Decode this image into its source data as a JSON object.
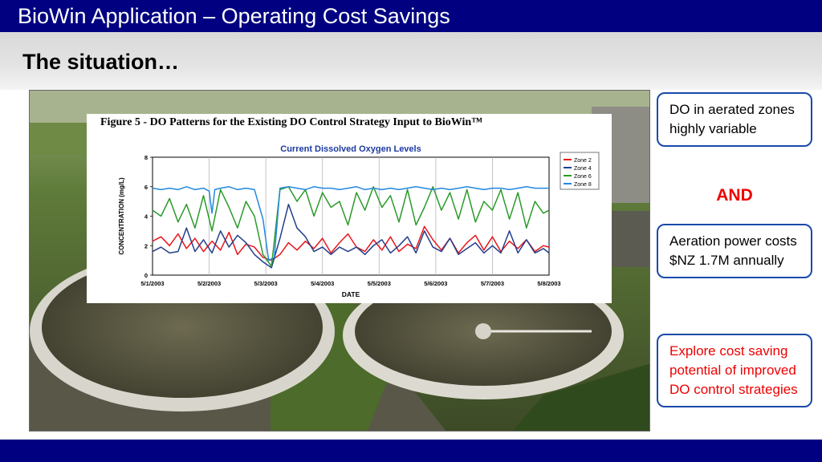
{
  "slide": {
    "title": "BioWin Application – Operating Cost Savings",
    "subtitle": "The situation…"
  },
  "figure": {
    "caption": "Figure 5 - DO Patterns for the Existing DO Control Strategy Input to BioWin™"
  },
  "callouts": [
    {
      "text": "DO in aerated zones highly variable"
    },
    {
      "text": "Aeration power costs $NZ 1.7M annually"
    },
    {
      "text": "Explore cost saving potential of improved DO control strategies"
    }
  ],
  "connector": "AND",
  "colors": {
    "title_bar": "#000080",
    "callout_border": "#1a4aa8",
    "emphasis_red": "#ee0000"
  },
  "chart_data": {
    "type": "line",
    "title": "Current Dissolved Oxygen Levels",
    "xlabel": "DATE",
    "ylabel": "CONCENTRATION (mg/L)",
    "xlim": [
      0,
      7
    ],
    "ylim": [
      0,
      8
    ],
    "x_ticks": [
      "5/1/2003",
      "5/2/2003",
      "5/3/2003",
      "5/4/2003",
      "5/5/2003",
      "5/6/2003",
      "5/7/2003",
      "5/8/2003"
    ],
    "y_ticks": [
      0,
      2,
      4,
      6,
      8
    ],
    "grid": "vertical",
    "legend_position": "top-right",
    "series": [
      {
        "name": "Zone 2",
        "color": "#e8161b",
        "x": [
          0,
          0.15,
          0.3,
          0.45,
          0.6,
          0.75,
          0.9,
          1.05,
          1.2,
          1.35,
          1.5,
          1.65,
          1.8,
          1.95,
          2.1,
          2.25,
          2.4,
          2.55,
          2.7,
          2.85,
          3,
          3.15,
          3.3,
          3.45,
          3.6,
          3.75,
          3.9,
          4.05,
          4.2,
          4.35,
          4.5,
          4.65,
          4.8,
          4.95,
          5.1,
          5.25,
          5.4,
          5.55,
          5.7,
          5.85,
          6,
          6.15,
          6.3,
          6.45,
          6.6,
          6.75,
          6.9,
          7
        ],
        "y": [
          2.3,
          2.6,
          2.0,
          2.8,
          1.8,
          2.5,
          1.6,
          2.3,
          1.7,
          2.9,
          1.4,
          2.1,
          1.9,
          1.2,
          1.0,
          1.4,
          2.2,
          1.7,
          2.3,
          1.8,
          2.5,
          1.5,
          2.2,
          2.8,
          1.9,
          1.6,
          2.4,
          1.7,
          2.6,
          1.6,
          2.1,
          1.8,
          3.3,
          2.4,
          1.7,
          2.5,
          1.5,
          2.2,
          2.7,
          1.7,
          2.6,
          1.6,
          2.3,
          1.8,
          2.4,
          1.6,
          2.0,
          1.9
        ]
      },
      {
        "name": "Zone 4",
        "color": "#233f8c",
        "x": [
          0,
          0.15,
          0.3,
          0.45,
          0.6,
          0.75,
          0.9,
          1.05,
          1.2,
          1.35,
          1.5,
          1.65,
          1.8,
          1.95,
          2.1,
          2.25,
          2.4,
          2.55,
          2.7,
          2.85,
          3,
          3.15,
          3.3,
          3.45,
          3.6,
          3.75,
          3.9,
          4.05,
          4.2,
          4.35,
          4.5,
          4.65,
          4.8,
          4.95,
          5.1,
          5.25,
          5.4,
          5.55,
          5.7,
          5.85,
          6,
          6.15,
          6.3,
          6.45,
          6.6,
          6.75,
          6.9,
          7
        ],
        "y": [
          1.6,
          1.9,
          1.5,
          1.6,
          3.2,
          1.6,
          2.4,
          1.5,
          3.0,
          1.9,
          2.7,
          2.2,
          1.4,
          0.9,
          0.5,
          2.5,
          4.8,
          3.2,
          2.6,
          1.6,
          1.9,
          1.4,
          1.9,
          1.6,
          1.9,
          1.4,
          2.0,
          2.4,
          1.5,
          2.0,
          2.6,
          1.5,
          3.0,
          1.9,
          1.6,
          2.5,
          1.4,
          1.8,
          2.2,
          1.5,
          2.0,
          1.5,
          3.0,
          1.5,
          2.4,
          1.5,
          1.8,
          1.5
        ]
      },
      {
        "name": "Zone 6",
        "color": "#2a9a2a",
        "x": [
          0,
          0.15,
          0.3,
          0.45,
          0.6,
          0.75,
          0.9,
          1.05,
          1.2,
          1.35,
          1.5,
          1.65,
          1.8,
          1.95,
          2.1,
          2.25,
          2.4,
          2.55,
          2.7,
          2.85,
          3,
          3.15,
          3.3,
          3.45,
          3.6,
          3.75,
          3.9,
          4.05,
          4.2,
          4.35,
          4.5,
          4.65,
          4.8,
          4.95,
          5.1,
          5.25,
          5.4,
          5.55,
          5.7,
          5.85,
          6,
          6.15,
          6.3,
          6.45,
          6.6,
          6.75,
          6.9,
          7
        ],
        "y": [
          4.4,
          4.0,
          5.2,
          3.6,
          4.8,
          3.2,
          5.4,
          3.0,
          5.8,
          4.6,
          3.2,
          5.0,
          4.0,
          1.4,
          0.6,
          5.8,
          6.0,
          5.0,
          5.8,
          4.0,
          5.6,
          4.6,
          5.0,
          3.4,
          5.6,
          4.4,
          6.0,
          4.6,
          5.4,
          3.6,
          5.8,
          3.4,
          4.6,
          6.0,
          4.4,
          5.6,
          3.8,
          5.8,
          3.6,
          5.0,
          4.4,
          5.8,
          3.8,
          5.6,
          3.2,
          5.0,
          4.2,
          4.4
        ]
      },
      {
        "name": "Zone 8",
        "color": "#2288e0",
        "x": [
          0,
          0.15,
          0.3,
          0.45,
          0.6,
          0.75,
          0.9,
          1.0,
          1.05,
          1.1,
          1.2,
          1.35,
          1.5,
          1.65,
          1.8,
          1.95,
          2.05,
          2.15,
          2.25,
          2.4,
          2.55,
          2.7,
          2.85,
          3,
          3.15,
          3.3,
          3.45,
          3.6,
          3.75,
          3.9,
          4.05,
          4.2,
          4.35,
          4.5,
          4.65,
          4.8,
          4.95,
          5.1,
          5.25,
          5.4,
          5.55,
          5.7,
          5.85,
          6,
          6.15,
          6.3,
          6.45,
          6.6,
          6.75,
          6.9,
          7
        ],
        "y": [
          5.9,
          5.8,
          5.9,
          5.8,
          6.0,
          5.8,
          5.9,
          5.7,
          4.2,
          5.8,
          5.9,
          6.0,
          5.8,
          5.9,
          5.8,
          3.8,
          1.0,
          1.2,
          5.9,
          6.0,
          5.9,
          5.8,
          6.0,
          5.9,
          5.9,
          5.8,
          5.9,
          6.0,
          5.8,
          5.9,
          5.8,
          5.9,
          5.8,
          5.9,
          6.0,
          5.9,
          5.8,
          5.9,
          5.8,
          5.9,
          6.0,
          5.9,
          5.8,
          5.9,
          5.9,
          5.8,
          5.9,
          6.0,
          5.9,
          5.9,
          5.9
        ]
      }
    ]
  }
}
